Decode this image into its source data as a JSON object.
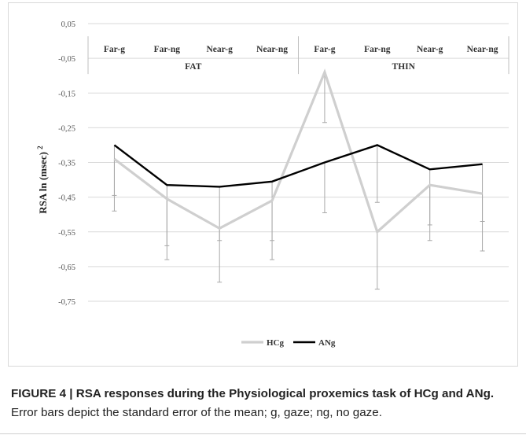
{
  "chart_data": {
    "type": "line",
    "ylabel": "RSA ln (msec)",
    "ylabel_superscript": "2",
    "y_ticks": [
      "0,05",
      "-0,05",
      "-0,15",
      "-0,25",
      "-0,35",
      "-0,45",
      "-0,55",
      "-0,65",
      "-0,75"
    ],
    "ylim": [
      -0.75,
      0.05
    ],
    "grid": true,
    "legend_position": "bottom",
    "categories": [
      "Far-g",
      "Far-ng",
      "Near-g",
      "Near-ng",
      "Far-g",
      "Far-ng",
      "Near-g",
      "Near-ng"
    ],
    "groups": [
      {
        "label": "FAT",
        "span": [
          0,
          3
        ]
      },
      {
        "label": "THIN",
        "span": [
          4,
          7
        ]
      }
    ],
    "series": [
      {
        "name": "HCg",
        "color": "#cfcfcf",
        "values": [
          -0.34,
          -0.455,
          -0.54,
          -0.46,
          -0.09,
          -0.55,
          -0.415,
          -0.44
        ],
        "error_low": [
          -0.49,
          -0.63,
          -0.695,
          -0.63,
          -0.235,
          -0.715,
          -0.575,
          -0.605
        ]
      },
      {
        "name": "ANg",
        "color": "#000000",
        "values": [
          -0.3,
          -0.415,
          -0.42,
          -0.405,
          -0.35,
          -0.3,
          -0.37,
          -0.355
        ],
        "error_low": [
          -0.445,
          -0.59,
          -0.575,
          -0.575,
          -0.495,
          -0.465,
          -0.53,
          -0.52
        ]
      }
    ]
  },
  "caption": {
    "figure_label": "FIGURE 4 | RSA responses during the Physiological proxemics task of HCg and ANg.",
    "text": " Error bars depict the standard error of the mean; g, gaze; ng, no gaze."
  }
}
